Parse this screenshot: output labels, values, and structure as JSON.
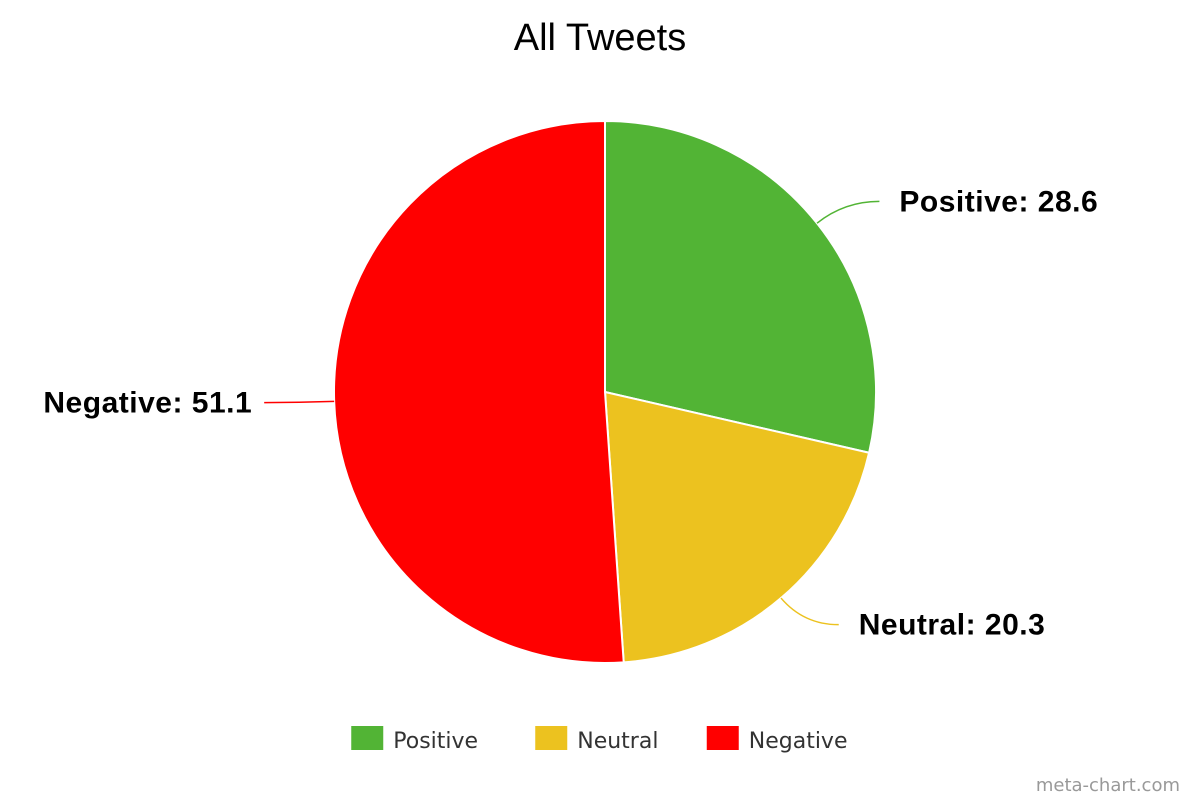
{
  "chart_data": {
    "type": "pie",
    "title": "All Tweets",
    "slices": [
      {
        "label": "Positive",
        "value": 28.6,
        "color": "#52b435"
      },
      {
        "label": "Neutral",
        "value": 20.3,
        "color": "#ecc21f"
      },
      {
        "label": "Negative",
        "value": 51.1,
        "color": "#ff0000"
      }
    ],
    "legend": {
      "placement": "bottom",
      "entries": [
        "Positive",
        "Neutral",
        "Negative"
      ]
    }
  },
  "credit": "meta-chart.com"
}
